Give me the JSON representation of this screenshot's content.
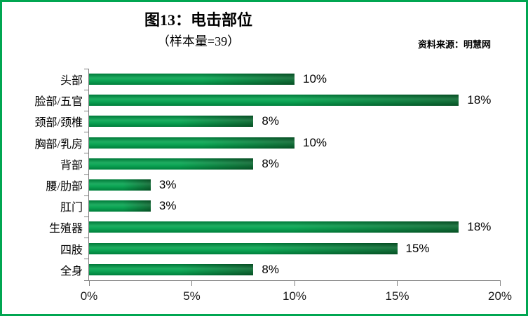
{
  "window": {
    "border_color": "#00A651",
    "background": "#FFFFFF"
  },
  "header": {
    "title": "图13：电击部位",
    "subtitle": "（样本量=39）",
    "source": "资料来源：明慧网"
  },
  "chart_data": {
    "type": "bar",
    "orientation": "horizontal",
    "title": "图13：电击部位",
    "subtitle": "（样本量=39）",
    "source": "资料来源：明慧网",
    "sample_size": 39,
    "categories": [
      "头部",
      "脸部/五官",
      "颈部/颈椎",
      "胸部/乳房",
      "背部",
      "腰/肋部",
      "肛门",
      "生殖器",
      "四肢",
      "全身"
    ],
    "values": [
      10,
      18,
      8,
      10,
      8,
      3,
      3,
      18,
      15,
      8
    ],
    "value_labels": [
      "10%",
      "18%",
      "8%",
      "10%",
      "8%",
      "3%",
      "3%",
      "18%",
      "15%",
      "8%"
    ],
    "xlabel": "",
    "ylabel": "",
    "xlim": [
      0,
      20
    ],
    "x_ticks": [
      {
        "value": 0,
        "label": "0%"
      },
      {
        "value": 5,
        "label": "5%"
      },
      {
        "value": 10,
        "label": "10%"
      },
      {
        "value": 15,
        "label": "15%"
      },
      {
        "value": 20,
        "label": "20%"
      }
    ],
    "grid": false,
    "legend": false,
    "bar_gradient": {
      "start": "#00A24C",
      "mid": "#00A24C",
      "end": "#07652D"
    },
    "axis_color": "#808080",
    "label_color": "#000000"
  }
}
